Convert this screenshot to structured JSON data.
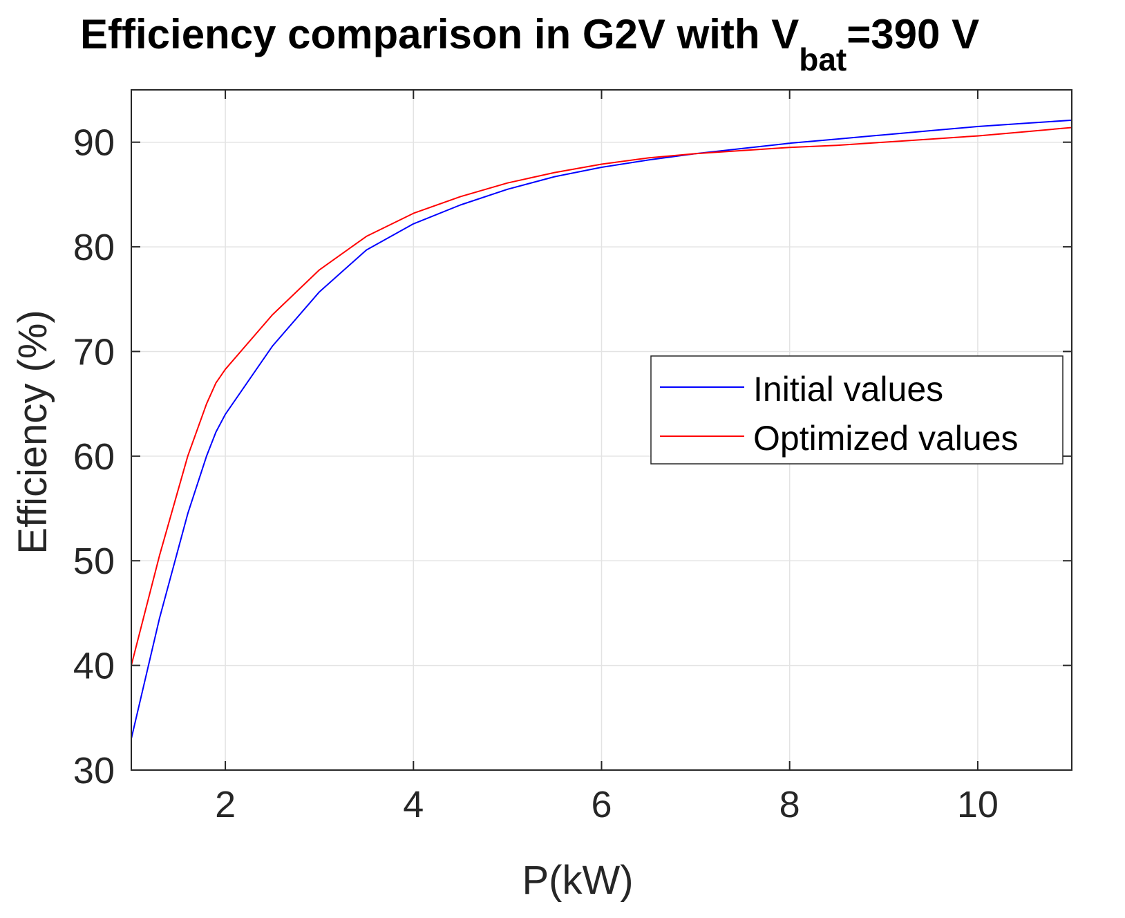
{
  "chart_data": {
    "type": "line",
    "title": {
      "main": "Efficiency comparison in G2V with V",
      "subscript": "bat",
      "suffix": "=390 V"
    },
    "xlabel": "P(kW)",
    "ylabel": "Efficiency (%)",
    "xlim": [
      1,
      11
    ],
    "ylim": [
      30,
      95
    ],
    "xticks": [
      2,
      4,
      6,
      8,
      10
    ],
    "xtick_labels": [
      "2",
      "4",
      "6",
      "8",
      "10"
    ],
    "yticks": [
      30,
      40,
      50,
      60,
      70,
      80,
      90
    ],
    "ytick_labels": [
      "30",
      "40",
      "50",
      "60",
      "70",
      "80",
      "90"
    ],
    "grid": true,
    "legend_position": "center-right",
    "series": [
      {
        "name": "Initial values",
        "color": "#0000ff",
        "x": [
          1,
          1.3,
          1.6,
          1.8,
          1.9,
          2,
          2.5,
          3,
          3.5,
          4,
          4.5,
          5,
          5.5,
          6,
          6.5,
          7,
          7.5,
          8,
          8.5,
          9,
          9.5,
          10,
          10.5,
          11
        ],
        "y": [
          33,
          44.5,
          54.5,
          60,
          62.3,
          64,
          70.5,
          75.7,
          79.7,
          82.2,
          84,
          85.5,
          86.7,
          87.6,
          88.3,
          88.9,
          89.4,
          89.9,
          90.3,
          90.7,
          91.1,
          91.5,
          91.8,
          92.1
        ]
      },
      {
        "name": "Optimized values",
        "color": "#ff0000",
        "x": [
          1,
          1.3,
          1.6,
          1.8,
          1.9,
          2,
          2.5,
          3,
          3.5,
          4,
          4.5,
          5,
          5.5,
          6,
          6.5,
          7,
          7.5,
          8,
          8.5,
          9,
          9.5,
          10,
          10.5,
          11
        ],
        "y": [
          40,
          50.5,
          60,
          65,
          67,
          68.3,
          73.5,
          77.8,
          81,
          83.2,
          84.8,
          86.1,
          87.1,
          87.9,
          88.5,
          88.9,
          89.2,
          89.5,
          89.7,
          90,
          90.3,
          90.6,
          91,
          91.4
        ]
      }
    ]
  }
}
